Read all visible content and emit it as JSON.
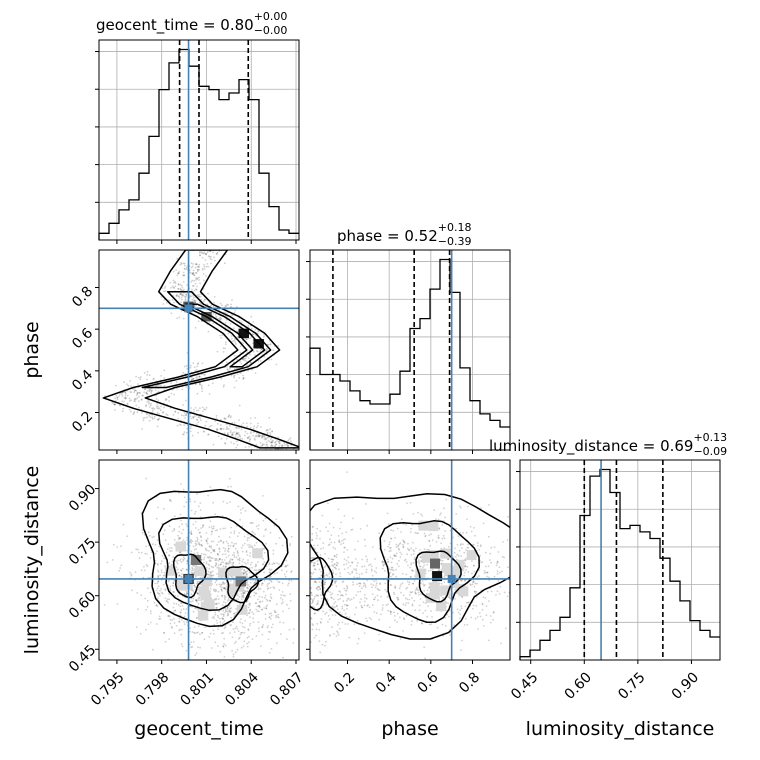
{
  "chart_data": {
    "type": "corner",
    "truth_color": "#4682b4",
    "parameters": [
      {
        "name": "geocent_time",
        "axis_label": "geocent_time",
        "title_name": "geocent_time",
        "title_value": "0.80",
        "err_plus": "+0.00",
        "err_minus": "−0.00",
        "range": [
          0.7938,
          0.8072
        ],
        "ticks": [
          0.795,
          0.798,
          0.801,
          0.804,
          0.807
        ],
        "tick_labels": [
          "0.795",
          "0.798",
          "0.801",
          "0.804",
          "0.807"
        ],
        "truth": 0.7998,
        "quantiles": [
          0.7992,
          0.8005,
          0.8038
        ],
        "hist": {
          "edges_start": 0.7938,
          "bin_width": 0.00067,
          "counts": [
            2,
            5,
            9,
            12,
            20,
            31,
            45,
            53,
            57,
            52,
            46,
            45,
            42,
            44,
            48,
            42,
            20,
            10,
            3,
            2
          ]
        }
      },
      {
        "name": "phase",
        "axis_label": "phase",
        "title_name": "phase",
        "title_value": "0.52",
        "err_plus": "+0.18",
        "err_minus": "−0.39",
        "range": [
          0.02,
          0.98
        ],
        "ticks": [
          0.2,
          0.4,
          0.6,
          0.8
        ],
        "tick_labels": [
          "0.2",
          "0.4",
          "0.6",
          "0.8"
        ],
        "truth": 0.7,
        "quantiles": [
          0.13,
          0.52,
          0.69
        ],
        "hist": {
          "edges_start": 0.02,
          "bin_width": 0.048,
          "counts": [
            31,
            23,
            23,
            21,
            18,
            15,
            14,
            14,
            17,
            24,
            37,
            40,
            49,
            58,
            48,
            25,
            15,
            11,
            9,
            7
          ]
        }
      },
      {
        "name": "luminosity_distance",
        "axis_label": "luminosity_distance",
        "title_name": "luminosity_distance",
        "title_value": "0.69",
        "err_plus": "+0.13",
        "err_minus": "−0.09",
        "range": [
          0.42,
          0.98
        ],
        "ticks": [
          0.45,
          0.6,
          0.75,
          0.9
        ],
        "tick_labels": [
          "0.45",
          "0.60",
          "0.75",
          "0.90"
        ],
        "truth": 0.647,
        "quantiles": [
          0.6,
          0.69,
          0.82
        ],
        "hist": {
          "edges_start": 0.42,
          "bin_width": 0.028,
          "counts": [
            1,
            3,
            6,
            9,
            13,
            22,
            44,
            56,
            58,
            51,
            40,
            41,
            39,
            37,
            31,
            24,
            18,
            12,
            9,
            7
          ]
        }
      }
    ],
    "contours": {
      "phase_vs_geocent_time": {
        "x": "geocent_time",
        "y": "phase",
        "ridge": [
          [
            0.801,
            0.98
          ],
          [
            0.8,
            0.88
          ],
          [
            0.7992,
            0.78
          ],
          [
            0.8,
            0.72
          ],
          [
            0.8018,
            0.66
          ],
          [
            0.8035,
            0.58
          ],
          [
            0.8045,
            0.5
          ],
          [
            0.803,
            0.42
          ],
          [
            0.8005,
            0.37
          ],
          [
            0.7975,
            0.32
          ],
          [
            0.7955,
            0.27
          ],
          [
            0.7975,
            0.22
          ],
          [
            0.8,
            0.17
          ],
          [
            0.8025,
            0.12
          ],
          [
            0.8045,
            0.07
          ],
          [
            0.806,
            0.03
          ]
        ],
        "peaks": [
          [
            0.8035,
            0.58
          ],
          [
            0.8045,
            0.53
          ],
          [
            0.7998,
            0.71
          ],
          [
            0.801,
            0.66
          ]
        ]
      },
      "luminosity_distance_vs_geocent_time": {
        "x": "geocent_time",
        "y": "luminosity_distance",
        "centers": [
          [
            0.7998,
            0.66
          ],
          [
            0.8033,
            0.63
          ]
        ],
        "peaks": [
          [
            0.7998,
            0.647
          ],
          [
            0.8033,
            0.64
          ],
          [
            0.8003,
            0.7
          ]
        ]
      },
      "luminosity_distance_vs_phase": {
        "x": "phase",
        "y": "luminosity_distance",
        "centers": [
          [
            0.63,
            0.66
          ],
          [
            0.05,
            0.64
          ]
        ],
        "peaks": [
          [
            0.63,
            0.655
          ],
          [
            0.62,
            0.69
          ]
        ]
      }
    }
  }
}
